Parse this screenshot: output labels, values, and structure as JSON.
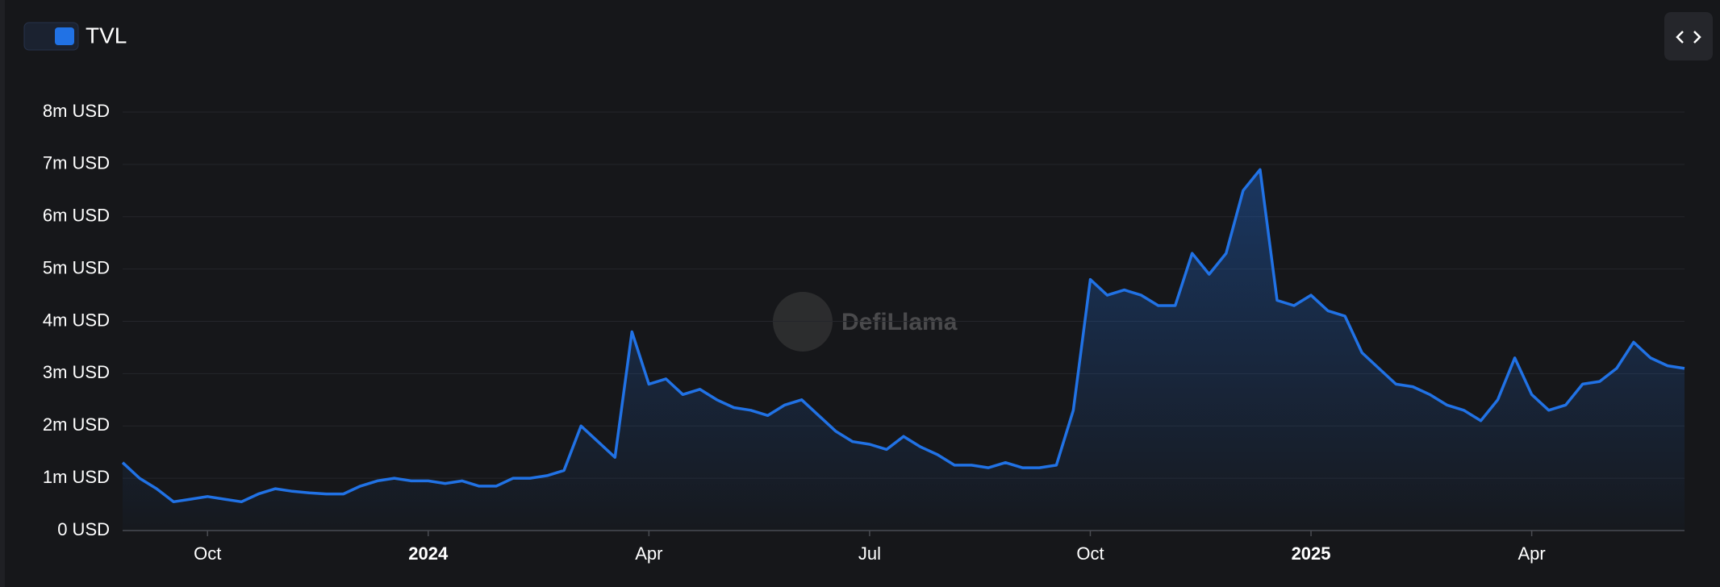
{
  "chart_data": {
    "type": "area",
    "watermark": "DefiLlama",
    "categories": [
      null,
      null,
      null,
      null,
      null,
      "Oct",
      null,
      null,
      null,
      null,
      null,
      null,
      null,
      null,
      null,
      null,
      null,
      null,
      "2024",
      null,
      null,
      null,
      null,
      null,
      null,
      null,
      null,
      null,
      null,
      null,
      null,
      "Apr",
      null,
      null,
      null,
      null,
      null,
      null,
      null,
      null,
      null,
      null,
      null,
      null,
      "Jul",
      null,
      null,
      null,
      null,
      null,
      null,
      null,
      null,
      null,
      null,
      null,
      null,
      "Oct",
      null,
      null,
      null,
      null,
      null,
      null,
      null,
      null,
      null,
      null,
      null,
      null,
      "2025",
      null,
      null,
      null,
      null,
      null,
      null,
      null,
      null,
      null,
      null,
      null,
      null,
      "Apr",
      null,
      null,
      null,
      null,
      null,
      null,
      null,
      null,
      null
    ],
    "series": [
      {
        "name": "TVL",
        "color": "#2172e5",
        "values": [
          1300000,
          1000000,
          800000,
          550000,
          600000,
          650000,
          600000,
          550000,
          700000,
          800000,
          750000,
          720000,
          700000,
          700000,
          850000,
          950000,
          1000000,
          950000,
          950000,
          900000,
          950000,
          850000,
          850000,
          1000000,
          1000000,
          1050000,
          1150000,
          2000000,
          1700000,
          1400000,
          3800000,
          2800000,
          2900000,
          2600000,
          2700000,
          2500000,
          2350000,
          2300000,
          2200000,
          2400000,
          2500000,
          2200000,
          1900000,
          1700000,
          1650000,
          1550000,
          1800000,
          1600000,
          1450000,
          1250000,
          1250000,
          1200000,
          1300000,
          1200000,
          1200000,
          1250000,
          2300000,
          4800000,
          4500000,
          4600000,
          4500000,
          4300000,
          4300000,
          5300000,
          4900000,
          5300000,
          6500000,
          6900000,
          4400000,
          4300000,
          4500000,
          4200000,
          4100000,
          3400000,
          3100000,
          2800000,
          2750000,
          2600000,
          2400000,
          2300000,
          2100000,
          2500000,
          3300000,
          2600000,
          2300000,
          2400000,
          2800000,
          2850000,
          3100000,
          3600000,
          3300000,
          3150000,
          3100000
        ]
      }
    ],
    "ylim": [
      0,
      8000000
    ],
    "yticks": [
      {
        "value": 0,
        "label": "0 USD"
      },
      {
        "value": 1000000,
        "label": "1m USD"
      },
      {
        "value": 2000000,
        "label": "2m USD"
      },
      {
        "value": 3000000,
        "label": "3m USD"
      },
      {
        "value": 4000000,
        "label": "4m USD"
      },
      {
        "value": 5000000,
        "label": "5m USD"
      },
      {
        "value": 6000000,
        "label": "6m USD"
      },
      {
        "value": 7000000,
        "label": "7m USD"
      },
      {
        "value": 8000000,
        "label": "8m USD"
      }
    ],
    "grid": true
  }
}
